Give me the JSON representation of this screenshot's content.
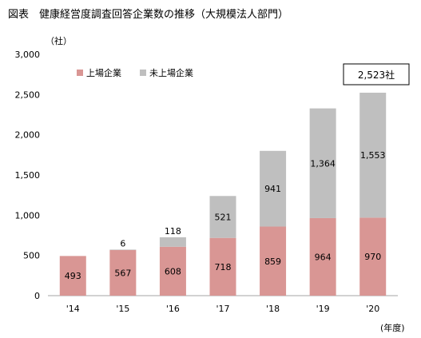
{
  "figure": {
    "title": "図表　健康経営度調査回答企業数の推移（大規模法人部門）",
    "y_unit": "（社）",
    "x_unit": "(年度)",
    "total_callout": "2,523社"
  },
  "colors": {
    "listed": "#d99694",
    "unlisted": "#bfbfbf",
    "grid": "#e0e0e0",
    "axis": "#a6a6a6"
  },
  "chart_data": {
    "type": "bar",
    "stacked": true,
    "categories": [
      "'14",
      "'15",
      "'16",
      "'17",
      "'18",
      "'19",
      "'20"
    ],
    "series": [
      {
        "name": "上場企業",
        "values": [
          493,
          567,
          608,
          718,
          859,
          964,
          970
        ]
      },
      {
        "name": "未上場企業",
        "values": [
          null,
          6,
          118,
          521,
          941,
          1364,
          1553
        ]
      }
    ],
    "data_labels": {
      "上場企業": [
        "493",
        "567",
        "608",
        "718",
        "859",
        "964",
        "970"
      ],
      "未上場企業": [
        "",
        "6",
        "118",
        "521",
        "941",
        "1,364",
        "1,553"
      ]
    },
    "yticks": [
      "0",
      "500",
      "1,000",
      "1,500",
      "2,000",
      "2,500",
      "3,000"
    ],
    "ylim": [
      0,
      3000
    ],
    "grid": false,
    "legend": "top-left"
  }
}
